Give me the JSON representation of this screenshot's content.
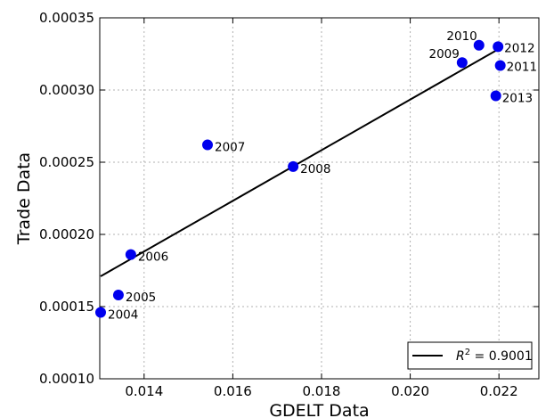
{
  "chart_data": {
    "type": "scatter",
    "title": "",
    "xlabel": "GDELT Data",
    "ylabel": "Trade Data",
    "xlim": [
      0.013,
      0.0229
    ],
    "ylim": [
      0.0001,
      0.00035
    ],
    "xticks": [
      {
        "v": 0.014,
        "label": "0.014"
      },
      {
        "v": 0.016,
        "label": "0.016"
      },
      {
        "v": 0.018,
        "label": "0.018"
      },
      {
        "v": 0.02,
        "label": "0.020"
      },
      {
        "v": 0.022,
        "label": "0.022"
      }
    ],
    "yticks": [
      {
        "v": 0.0001,
        "label": "0.00010"
      },
      {
        "v": 0.00015,
        "label": "0.00015"
      },
      {
        "v": 0.0002,
        "label": "0.00020"
      },
      {
        "v": 0.00025,
        "label": "0.00025"
      },
      {
        "v": 0.0003,
        "label": "0.00030"
      },
      {
        "v": 0.00035,
        "label": "0.00035"
      }
    ],
    "grid": true,
    "point_color": "#0000ee",
    "points": [
      {
        "label": "2004",
        "x": 0.01302,
        "y": 0.000146
      },
      {
        "label": "2005",
        "x": 0.01342,
        "y": 0.000158
      },
      {
        "label": "2006",
        "x": 0.0137,
        "y": 0.000186
      },
      {
        "label": "2007",
        "x": 0.01543,
        "y": 0.000262
      },
      {
        "label": "2008",
        "x": 0.01736,
        "y": 0.000247
      },
      {
        "label": "2009",
        "x": 0.02117,
        "y": 0.000319
      },
      {
        "label": "2010",
        "x": 0.02155,
        "y": 0.000331
      },
      {
        "label": "2011",
        "x": 0.02203,
        "y": 0.000317
      },
      {
        "label": "2012",
        "x": 0.02198,
        "y": 0.00033
      },
      {
        "label": "2013",
        "x": 0.02193,
        "y": 0.000296
      }
    ],
    "fit_line": {
      "x": [
        0.01302,
        0.02203
      ],
      "y": [
        0.000171,
        0.000329
      ],
      "color": "#000000"
    },
    "legend": {
      "label_prefix": "R",
      "label_exponent": "2",
      "label_suffix": " = 0.9001",
      "placement": "bottom-right"
    }
  }
}
